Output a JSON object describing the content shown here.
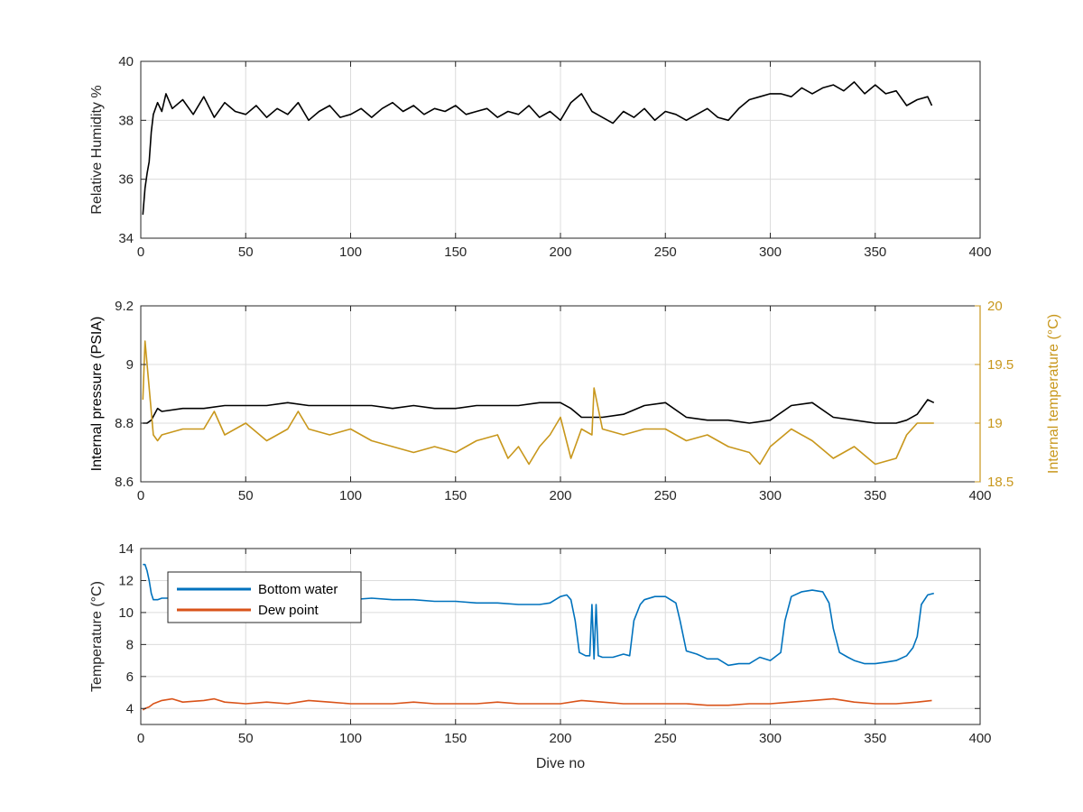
{
  "chart_data": [
    {
      "type": "line",
      "id": "humidity",
      "xlabel": "",
      "ylabel": "Relative Humidity %",
      "xlim": [
        0,
        400
      ],
      "ylim": [
        34,
        40
      ],
      "xticks": [
        0,
        50,
        100,
        150,
        200,
        250,
        300,
        350,
        400
      ],
      "yticks": [
        34,
        36,
        38,
        40
      ],
      "grid": true,
      "series": [
        {
          "color": "#000000",
          "x": [
            1,
            2,
            3,
            4,
            5,
            6,
            8,
            10,
            12,
            15,
            20,
            25,
            30,
            35,
            40,
            45,
            50,
            55,
            60,
            65,
            70,
            75,
            80,
            85,
            90,
            95,
            100,
            105,
            110,
            115,
            120,
            125,
            130,
            135,
            140,
            145,
            150,
            155,
            160,
            165,
            170,
            175,
            180,
            185,
            190,
            195,
            200,
            205,
            210,
            215,
            220,
            225,
            230,
            235,
            240,
            245,
            250,
            255,
            260,
            265,
            270,
            275,
            280,
            285,
            290,
            295,
            300,
            305,
            310,
            315,
            320,
            325,
            330,
            335,
            340,
            345,
            350,
            355,
            360,
            365,
            370,
            375,
            377
          ],
          "y": [
            34.8,
            35.7,
            36.2,
            36.6,
            37.6,
            38.2,
            38.6,
            38.3,
            38.9,
            38.4,
            38.7,
            38.2,
            38.8,
            38.1,
            38.6,
            38.3,
            38.2,
            38.5,
            38.1,
            38.4,
            38.2,
            38.6,
            38.0,
            38.3,
            38.5,
            38.1,
            38.2,
            38.4,
            38.1,
            38.4,
            38.6,
            38.3,
            38.5,
            38.2,
            38.4,
            38.3,
            38.5,
            38.2,
            38.3,
            38.4,
            38.1,
            38.3,
            38.2,
            38.5,
            38.1,
            38.3,
            38.0,
            38.6,
            38.9,
            38.3,
            38.1,
            37.9,
            38.3,
            38.1,
            38.4,
            38.0,
            38.3,
            38.2,
            38.0,
            38.2,
            38.4,
            38.1,
            38.0,
            38.4,
            38.7,
            38.8,
            38.9,
            38.9,
            38.8,
            39.1,
            38.9,
            39.1,
            39.2,
            39.0,
            39.3,
            38.9,
            39.2,
            38.9,
            39.0,
            38.5,
            38.7,
            38.8,
            38.5
          ]
        }
      ]
    },
    {
      "type": "line",
      "id": "pressure-temperature",
      "xlabel": "",
      "ylabel": "Internal pressure (PSIA)",
      "ylabel_right": "Internal temperature (°C)",
      "xlim": [
        0,
        400
      ],
      "ylim": [
        8.6,
        9.2
      ],
      "ylim_right": [
        18.5,
        20
      ],
      "xticks": [
        0,
        50,
        100,
        150,
        200,
        250,
        300,
        350,
        400
      ],
      "yticks": [
        8.6,
        8.8,
        9,
        9.2
      ],
      "yticks_right": [
        18.5,
        19,
        19.5,
        20
      ],
      "grid": true,
      "series": [
        {
          "axis": "left",
          "color": "#000000",
          "x": [
            1,
            3,
            5,
            8,
            10,
            20,
            30,
            40,
            50,
            60,
            70,
            80,
            90,
            100,
            110,
            120,
            130,
            140,
            150,
            160,
            170,
            180,
            190,
            200,
            205,
            210,
            215,
            220,
            230,
            240,
            250,
            260,
            270,
            280,
            290,
            300,
            310,
            320,
            330,
            340,
            350,
            360,
            365,
            370,
            375,
            378
          ],
          "y": [
            8.8,
            8.8,
            8.81,
            8.85,
            8.84,
            8.85,
            8.85,
            8.86,
            8.86,
            8.86,
            8.87,
            8.86,
            8.86,
            8.86,
            8.86,
            8.85,
            8.86,
            8.85,
            8.85,
            8.86,
            8.86,
            8.86,
            8.87,
            8.87,
            8.85,
            8.82,
            8.82,
            8.82,
            8.83,
            8.86,
            8.87,
            8.82,
            8.81,
            8.81,
            8.8,
            8.81,
            8.86,
            8.87,
            8.82,
            8.81,
            8.8,
            8.8,
            8.81,
            8.83,
            8.88,
            8.87
          ]
        },
        {
          "axis": "right",
          "color": "#c8971c",
          "x": [
            1,
            2,
            4,
            6,
            8,
            10,
            20,
            30,
            35,
            40,
            50,
            60,
            70,
            75,
            80,
            90,
            100,
            110,
            120,
            130,
            140,
            150,
            160,
            170,
            175,
            180,
            185,
            190,
            195,
            200,
            205,
            210,
            215,
            216,
            220,
            230,
            240,
            250,
            260,
            270,
            280,
            290,
            295,
            300,
            310,
            320,
            330,
            340,
            350,
            360,
            365,
            370,
            378
          ],
          "y": [
            19.2,
            19.7,
            19.3,
            18.9,
            18.85,
            18.9,
            18.95,
            18.95,
            19.1,
            18.9,
            19.0,
            18.85,
            18.95,
            19.1,
            18.95,
            18.9,
            18.95,
            18.85,
            18.8,
            18.75,
            18.8,
            18.75,
            18.85,
            18.9,
            18.7,
            18.8,
            18.65,
            18.8,
            18.9,
            19.05,
            18.7,
            18.95,
            18.9,
            19.3,
            18.95,
            18.9,
            18.95,
            18.95,
            18.85,
            18.9,
            18.8,
            18.75,
            18.65,
            18.8,
            18.95,
            18.85,
            18.7,
            18.8,
            18.65,
            18.7,
            18.9,
            19.0,
            19.0
          ]
        }
      ]
    },
    {
      "type": "line",
      "id": "temperatures",
      "xlabel": "Dive no",
      "ylabel": "Temperature (°C)",
      "xlim": [
        0,
        400
      ],
      "ylim": [
        3,
        14
      ],
      "xticks": [
        0,
        50,
        100,
        150,
        200,
        250,
        300,
        350,
        400
      ],
      "yticks": [
        4,
        6,
        8,
        10,
        12,
        14
      ],
      "grid": true,
      "legend": "top-left",
      "series": [
        {
          "name": "Bottom water",
          "color": "#0072bd",
          "x": [
            1,
            2,
            3,
            4,
            5,
            6,
            8,
            10,
            15,
            20,
            30,
            40,
            50,
            60,
            70,
            80,
            90,
            100,
            110,
            120,
            130,
            140,
            150,
            160,
            170,
            180,
            190,
            195,
            200,
            203,
            205,
            207,
            209,
            212,
            214,
            215,
            216,
            217,
            218,
            220,
            225,
            230,
            233,
            235,
            238,
            240,
            245,
            250,
            255,
            257,
            260,
            265,
            270,
            275,
            280,
            285,
            290,
            295,
            300,
            305,
            307,
            310,
            315,
            320,
            325,
            328,
            330,
            333,
            337,
            340,
            345,
            350,
            355,
            360,
            365,
            368,
            370,
            372,
            375,
            378
          ],
          "y": [
            13.0,
            13.0,
            12.6,
            12.0,
            11.2,
            10.8,
            10.8,
            10.9,
            10.9,
            10.9,
            10.8,
            10.8,
            10.9,
            10.9,
            10.8,
            10.8,
            10.9,
            10.8,
            10.9,
            10.8,
            10.8,
            10.7,
            10.7,
            10.6,
            10.6,
            10.5,
            10.5,
            10.6,
            11.0,
            11.1,
            10.8,
            9.5,
            7.5,
            7.3,
            7.3,
            10.5,
            7.1,
            10.5,
            7.3,
            7.2,
            7.2,
            7.4,
            7.3,
            9.5,
            10.5,
            10.8,
            11.0,
            11.0,
            10.6,
            9.5,
            7.6,
            7.4,
            7.1,
            7.1,
            6.7,
            6.8,
            6.8,
            7.2,
            7.0,
            7.5,
            9.5,
            11.0,
            11.3,
            11.4,
            11.3,
            10.6,
            9.0,
            7.5,
            7.2,
            7.0,
            6.8,
            6.8,
            6.9,
            7.0,
            7.3,
            7.8,
            8.5,
            10.5,
            11.1,
            11.2
          ]
        },
        {
          "name": "Dew point",
          "color": "#d95319",
          "x": [
            1,
            2,
            4,
            6,
            10,
            15,
            20,
            30,
            35,
            40,
            50,
            60,
            70,
            80,
            90,
            100,
            110,
            120,
            130,
            140,
            150,
            160,
            170,
            180,
            190,
            200,
            210,
            220,
            230,
            240,
            250,
            260,
            270,
            280,
            290,
            300,
            310,
            320,
            330,
            340,
            350,
            360,
            370,
            377
          ],
          "y": [
            3.9,
            4.0,
            4.1,
            4.3,
            4.5,
            4.6,
            4.4,
            4.5,
            4.6,
            4.4,
            4.3,
            4.4,
            4.3,
            4.5,
            4.4,
            4.3,
            4.3,
            4.3,
            4.4,
            4.3,
            4.3,
            4.3,
            4.4,
            4.3,
            4.3,
            4.3,
            4.5,
            4.4,
            4.3,
            4.3,
            4.3,
            4.3,
            4.2,
            4.2,
            4.3,
            4.3,
            4.4,
            4.5,
            4.6,
            4.4,
            4.3,
            4.3,
            4.4,
            4.5
          ]
        }
      ]
    }
  ]
}
